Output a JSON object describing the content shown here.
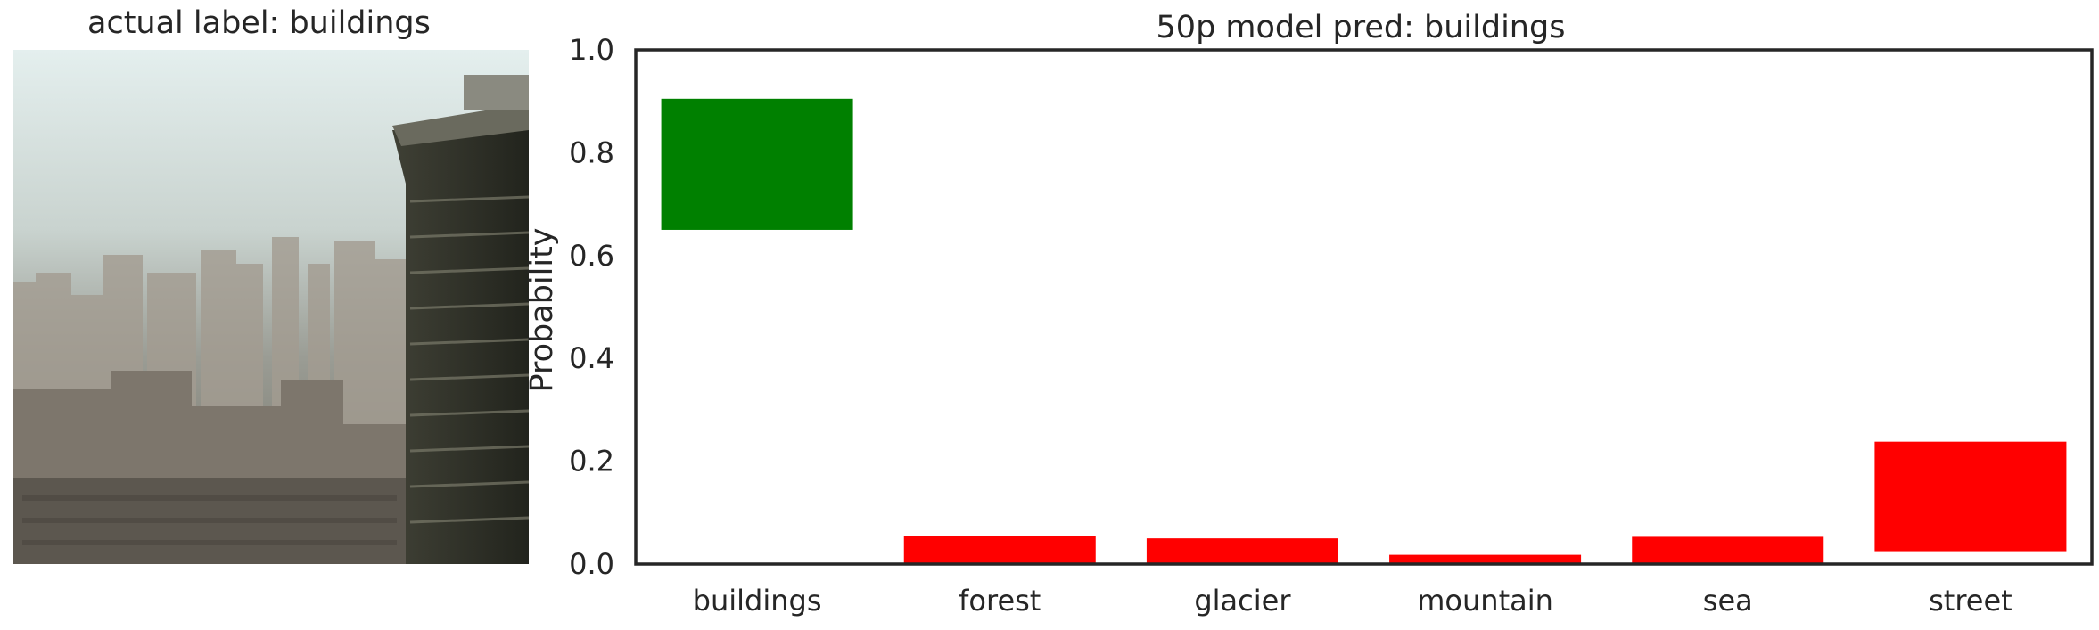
{
  "left_panel": {
    "title": "actual label: buildings",
    "image_description": "hazy city skyline with high-rise buildings"
  },
  "chart_data": {
    "type": "bar",
    "title": "50p model pred: buildings",
    "xlabel": "",
    "ylabel": "Probability",
    "categories": [
      "buildings",
      "forest",
      "glacier",
      "mountain",
      "sea",
      "street"
    ],
    "bar_bottom": [
      0.65,
      0.0,
      0.0,
      0.0,
      0.0,
      0.025
    ],
    "bar_top": [
      0.905,
      0.055,
      0.05,
      0.018,
      0.053,
      0.238
    ],
    "colors": [
      "#008000",
      "#ff0000",
      "#ff0000",
      "#ff0000",
      "#ff0000",
      "#ff0000"
    ],
    "ylim": [
      0.0,
      1.0
    ],
    "yticks": [
      "0.0",
      "0.2",
      "0.4",
      "0.6",
      "0.8",
      "1.0"
    ],
    "grid": false
  }
}
